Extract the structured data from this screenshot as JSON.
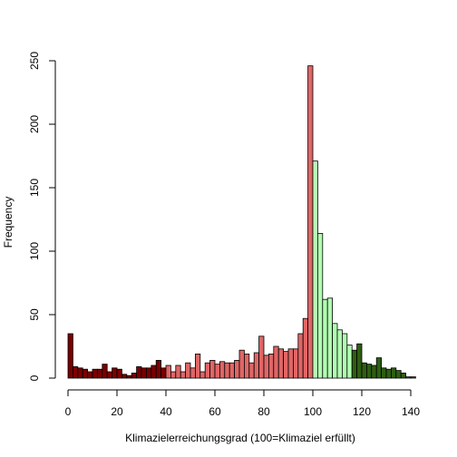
{
  "chart_data": {
    "type": "bar",
    "title": "",
    "xlabel": "Klimazielerreichungsgrad (100=Klimaziel erfüllt)",
    "ylabel": "Frequency",
    "xlim": [
      0,
      142
    ],
    "ylim": [
      0,
      250
    ],
    "xticks": [
      "0",
      "20",
      "40",
      "60",
      "80",
      "100",
      "120",
      "140"
    ],
    "yticks": [
      "0",
      "50",
      "100",
      "150",
      "200",
      "250"
    ],
    "bin_width": 2,
    "grid": false,
    "legend": "none",
    "bin_starts": [
      0,
      2,
      4,
      6,
      8,
      10,
      12,
      14,
      16,
      18,
      20,
      22,
      24,
      26,
      28,
      30,
      32,
      34,
      36,
      38,
      40,
      42,
      44,
      46,
      48,
      50,
      52,
      54,
      56,
      58,
      60,
      62,
      64,
      66,
      68,
      70,
      72,
      74,
      76,
      78,
      80,
      82,
      84,
      86,
      88,
      90,
      92,
      94,
      96,
      98,
      100,
      102,
      104,
      106,
      108,
      110,
      112,
      114,
      116,
      118,
      120,
      122,
      124,
      126,
      128,
      130,
      132,
      134,
      136,
      138,
      140
    ],
    "values": [
      35,
      9,
      8,
      7,
      5,
      7,
      7,
      11,
      5,
      8,
      7,
      3,
      2,
      4,
      9,
      8,
      8,
      10,
      14,
      8,
      10,
      5,
      10,
      5,
      12,
      8,
      19,
      5,
      12,
      14,
      11,
      13,
      12,
      12,
      14,
      22,
      19,
      12,
      20,
      33,
      18,
      19,
      25,
      23,
      21,
      23,
      23,
      35,
      47,
      246,
      171,
      114,
      62,
      63,
      43,
      38,
      35,
      26,
      22,
      27,
      12,
      11,
      10,
      16,
      8,
      7,
      8,
      6,
      4,
      1,
      1
    ],
    "colors": [
      "#7a0000",
      "#7a0000",
      "#7a0000",
      "#7a0000",
      "#7a0000",
      "#7a0000",
      "#7a0000",
      "#7a0000",
      "#7a0000",
      "#7a0000",
      "#7a0000",
      "#7a0000",
      "#7a0000",
      "#7a0000",
      "#7a0000",
      "#7a0000",
      "#7a0000",
      "#7a0000",
      "#7a0000",
      "#7a0000",
      "#e06666",
      "#e06666",
      "#e06666",
      "#e06666",
      "#e06666",
      "#e06666",
      "#e06666",
      "#e06666",
      "#e06666",
      "#e06666",
      "#e06666",
      "#e06666",
      "#e06666",
      "#e06666",
      "#e06666",
      "#e06666",
      "#e06666",
      "#e06666",
      "#e06666",
      "#e06666",
      "#e06666",
      "#e06666",
      "#e06666",
      "#e06666",
      "#e06666",
      "#e06666",
      "#e06666",
      "#e06666",
      "#e06666",
      "#e06666",
      "#b3ffb3",
      "#b3ffb3",
      "#b3ffb3",
      "#b3ffb3",
      "#b3ffb3",
      "#b3ffb3",
      "#b3ffb3",
      "#b3ffb3",
      "#2e5e12",
      "#2e5e12",
      "#2e5e12",
      "#2e5e12",
      "#2e5e12",
      "#2e5e12",
      "#2e5e12",
      "#2e5e12",
      "#2e5e12",
      "#2e5e12",
      "#2e5e12",
      "#2e5e12",
      "#2e5e12"
    ]
  }
}
